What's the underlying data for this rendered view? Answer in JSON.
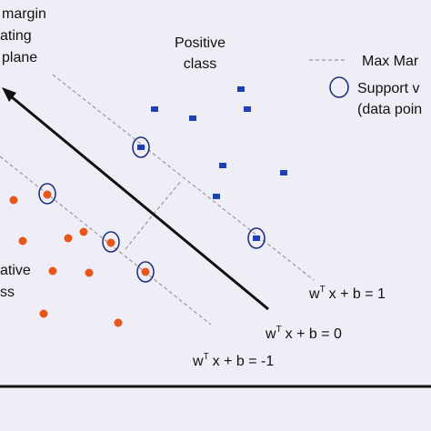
{
  "labels": {
    "hyperplane": [
      "margin",
      "ating",
      "plane"
    ],
    "positive": [
      "Positive",
      "class"
    ],
    "negative": [
      "ative",
      "ss"
    ],
    "legend": {
      "margin": "Max Mar",
      "support": [
        "Support v",
        "(data poin"
      ]
    },
    "equations": [
      {
        "w": "w",
        "sup": "T",
        "rest": "x + b = 1"
      },
      {
        "w": "w",
        "sup": "T",
        "rest": "x + b = 0"
      },
      {
        "w": "w",
        "sup": "T",
        "rest": "x + b = -1"
      }
    ]
  }
}
